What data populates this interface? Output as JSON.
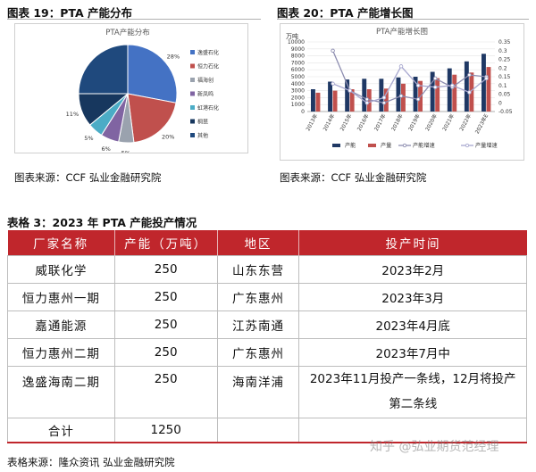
{
  "figure19": {
    "title": "图表 19：PTA 产能分布",
    "source": "图表来源：CCF 弘业金融研究院",
    "chart_data": {
      "type": "pie",
      "title": "PTA产能分布",
      "slices": [
        {
          "name": "逸盛石化",
          "value": 28,
          "label": "28%",
          "color": "#4472c4"
        },
        {
          "name": "恒力石化",
          "value": 20,
          "label": "20%",
          "color": "#c0504d"
        },
        {
          "name": "福海创",
          "value": 5,
          "label": "5%",
          "color": "#9aa2ae"
        },
        {
          "name": "新凤鸣",
          "value": 6,
          "label": "6%",
          "color": "#8064a2"
        },
        {
          "name": "虹港石化",
          "value": 5,
          "label": "5%",
          "color": "#4bacc6"
        },
        {
          "name": "桐昆",
          "value": 11,
          "label": "11%",
          "color": "#17375e"
        },
        {
          "name": "其他",
          "value": 25,
          "label": "",
          "color": "#1f497d"
        }
      ]
    }
  },
  "figure20": {
    "title": "图表 20：PTA 产能增长图",
    "source": "图表来源：CCF 弘业金融研究院",
    "chart_data": {
      "type": "bar",
      "title": "PTA产能增长图",
      "ylabel": "万吨",
      "categories": [
        "2013年",
        "2014年",
        "2015年",
        "2016年",
        "2017年",
        "2018年",
        "2019年",
        "2020年",
        "2021年",
        "2022年",
        "2023年E"
      ],
      "left_axis": {
        "ylim": [
          0,
          10000
        ],
        "ticks": [
          "0",
          "1000",
          "2000",
          "3000",
          "4000",
          "5000",
          "6000",
          "7000",
          "8000",
          "9000",
          "10000"
        ]
      },
      "right_axis": {
        "ylim": [
          -0.05,
          0.35
        ],
        "ticks": [
          "-0.05",
          "0",
          "0.05",
          "0.1",
          "0.15",
          "0.2",
          "0.25",
          "0.3",
          "0.35"
        ]
      },
      "series": [
        {
          "name": "产能",
          "kind": "bar",
          "axis": "left",
          "color": "#1f3864",
          "values": [
            3200,
            4300,
            4600,
            4700,
            4700,
            4900,
            5000,
            5700,
            6200,
            7200,
            8300
          ]
        },
        {
          "name": "产量",
          "kind": "bar",
          "axis": "left",
          "color": "#c0504d",
          "values": [
            2700,
            3000,
            3200,
            3200,
            3300,
            4000,
            4400,
            4800,
            5300,
            5600,
            6400
          ]
        },
        {
          "name": "产能增速",
          "kind": "line",
          "axis": "right",
          "color": "#8d8db0",
          "values": [
            null,
            0.3,
            0.07,
            0.02,
            0.0,
            0.04,
            0.02,
            0.14,
            0.09,
            0.16,
            0.15
          ]
        },
        {
          "name": "产量增速",
          "kind": "line",
          "axis": "right",
          "color": "#a8a8cf",
          "values": [
            null,
            0.11,
            0.07,
            0.0,
            0.03,
            0.21,
            0.1,
            0.09,
            0.1,
            0.06,
            0.14
          ]
        }
      ]
    }
  },
  "table3": {
    "title": "表格 3：2023 年 PTA 产能投产情况",
    "headers": [
      "厂家名称",
      "产能（万吨）",
      "地区",
      "投产时间"
    ],
    "rows": [
      {
        "name": "威联化学",
        "capacity": "250",
        "region": "山东东营",
        "time": "2023年2月"
      },
      {
        "name": "恒力惠州一期",
        "capacity": "250",
        "region": "广东惠州",
        "time": "2023年3月"
      },
      {
        "name": "嘉通能源",
        "capacity": "250",
        "region": "江苏南通",
        "time": "2023年4月底"
      },
      {
        "name": "恒力惠州二期",
        "capacity": "250",
        "region": "广东惠州",
        "time": "2023年7月中"
      },
      {
        "name": "逸盛海南二期",
        "capacity": "250",
        "region": "海南洋浦",
        "time_line1": "2023年11月投产一条线，12月将投产",
        "time_line2": "第二条线"
      }
    ],
    "total": {
      "label": "合计",
      "value": "1250"
    },
    "source": "表格来源：隆众资讯 弘业金融研究院"
  },
  "watermark": "知乎 @弘业期货范经理"
}
